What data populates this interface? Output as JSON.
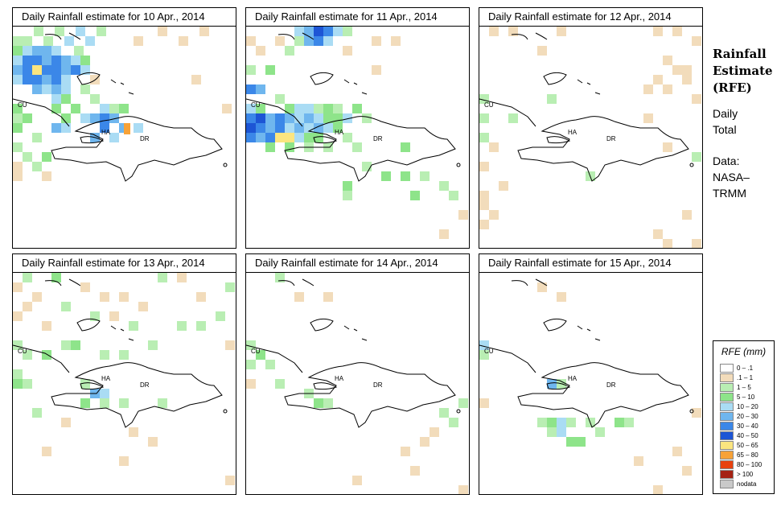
{
  "panels": [
    {
      "title": "Daily Rainfall estimate for  10 Apr., 2014"
    },
    {
      "title": "Daily Rainfall estimate for  11 Apr., 2014"
    },
    {
      "title": "Daily Rainfall estimate for  12 Apr., 2014"
    },
    {
      "title": "Daily Rainfall estimate for  13 Apr., 2014"
    },
    {
      "title": "Daily Rainfall estimate for  14 Apr., 2014"
    },
    {
      "title": "Daily Rainfall estimate for  15 Apr., 2014"
    }
  ],
  "map_labels": {
    "cuba": "CU",
    "haiti": "HA",
    "dominican_republic": "DR"
  },
  "side": {
    "title_line1": "Rainfall",
    "title_line2": "Estimate",
    "title_line3": "(RFE)",
    "daily_line1": "Daily",
    "daily_line2": "Total",
    "source_line1": "Data:",
    "source_line2": "NASA–",
    "source_line3": "TRMM"
  },
  "legend": {
    "title": "RFE (mm)",
    "items": [
      {
        "label": "0 – .1",
        "color": "#ffffff"
      },
      {
        "label": ".1 – 1",
        "color": "#f2dcbb"
      },
      {
        "label": "1 – 5",
        "color": "#b9eeb3"
      },
      {
        "label": "5 – 10",
        "color": "#8ee48a"
      },
      {
        "label": "10 – 20",
        "color": "#aadcf4"
      },
      {
        "label": "20 – 30",
        "color": "#6fb6ee"
      },
      {
        "label": "30 – 40",
        "color": "#3b87e8"
      },
      {
        "label": "40 – 50",
        "color": "#1d55d5"
      },
      {
        "label": "50 – 65",
        "color": "#fbe57f"
      },
      {
        "label": "65 – 80",
        "color": "#f7a238"
      },
      {
        "label": "80 – 100",
        "color": "#e8420f"
      },
      {
        "label": "> 100",
        "color": "#a52214"
      },
      {
        "label": "nodata",
        "color": "#c9c9c9"
      }
    ]
  }
}
